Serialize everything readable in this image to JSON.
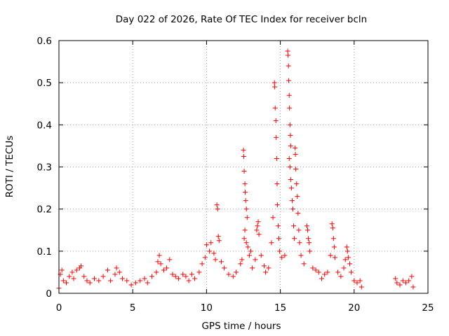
{
  "chart_data": {
    "type": "scatter",
    "title": "Day 022 of 2026, Rate Of TEC Index for receiver bcln",
    "xlabel": "GPS time / hours",
    "ylabel": "ROTI / TECUs",
    "xlim": [
      0,
      25
    ],
    "ylim": [
      0,
      0.6
    ],
    "xticks": [
      "0",
      "5",
      "10",
      "15",
      "20",
      "25"
    ],
    "yticks": [
      "0",
      "0.1",
      "0.2",
      "0.3",
      "0.4",
      "0.5",
      "0.6"
    ],
    "grid": true,
    "marker": "plus",
    "color": "#ff0000",
    "series": [
      {
        "points": [
          [
            0.0,
            0.012
          ],
          [
            0.1,
            0.045
          ],
          [
            0.2,
            0.055
          ],
          [
            0.3,
            0.03
          ],
          [
            0.5,
            0.025
          ],
          [
            0.7,
            0.04
          ],
          [
            0.9,
            0.05
          ],
          [
            1.0,
            0.035
          ],
          [
            1.2,
            0.055
          ],
          [
            1.4,
            0.06
          ],
          [
            1.5,
            0.065
          ],
          [
            1.7,
            0.04
          ],
          [
            1.9,
            0.03
          ],
          [
            2.1,
            0.025
          ],
          [
            2.4,
            0.035
          ],
          [
            2.7,
            0.03
          ],
          [
            3.0,
            0.04
          ],
          [
            3.3,
            0.055
          ],
          [
            3.5,
            0.03
          ],
          [
            3.8,
            0.045
          ],
          [
            3.9,
            0.06
          ],
          [
            4.1,
            0.05
          ],
          [
            4.3,
            0.035
          ],
          [
            4.6,
            0.03
          ],
          [
            4.9,
            0.02
          ],
          [
            5.2,
            0.025
          ],
          [
            5.5,
            0.03
          ],
          [
            5.8,
            0.035
          ],
          [
            6.0,
            0.025
          ],
          [
            6.3,
            0.04
          ],
          [
            6.6,
            0.05
          ],
          [
            6.7,
            0.075
          ],
          [
            6.8,
            0.09
          ],
          [
            6.9,
            0.07
          ],
          [
            7.1,
            0.055
          ],
          [
            7.3,
            0.06
          ],
          [
            7.5,
            0.08
          ],
          [
            7.7,
            0.045
          ],
          [
            7.9,
            0.04
          ],
          [
            8.1,
            0.035
          ],
          [
            8.4,
            0.045
          ],
          [
            8.6,
            0.04
          ],
          [
            8.8,
            0.03
          ],
          [
            9.0,
            0.045
          ],
          [
            9.2,
            0.035
          ],
          [
            9.5,
            0.05
          ],
          [
            9.7,
            0.07
          ],
          [
            9.9,
            0.085
          ],
          [
            10.0,
            0.115
          ],
          [
            10.2,
            0.1
          ],
          [
            10.3,
            0.12
          ],
          [
            10.5,
            0.095
          ],
          [
            10.6,
            0.08
          ],
          [
            10.7,
            0.21
          ],
          [
            10.75,
            0.2
          ],
          [
            10.8,
            0.135
          ],
          [
            10.85,
            0.125
          ],
          [
            11.0,
            0.075
          ],
          [
            11.2,
            0.06
          ],
          [
            11.5,
            0.045
          ],
          [
            11.8,
            0.04
          ],
          [
            12.0,
            0.05
          ],
          [
            12.3,
            0.07
          ],
          [
            12.4,
            0.08
          ],
          [
            12.5,
            0.34
          ],
          [
            12.52,
            0.325
          ],
          [
            12.55,
            0.29
          ],
          [
            12.6,
            0.26
          ],
          [
            12.62,
            0.24
          ],
          [
            12.65,
            0.22
          ],
          [
            12.7,
            0.2
          ],
          [
            12.75,
            0.18
          ],
          [
            12.6,
            0.15
          ],
          [
            12.55,
            0.13
          ],
          [
            12.7,
            0.12
          ],
          [
            12.8,
            0.11
          ],
          [
            12.9,
            0.09
          ],
          [
            13.0,
            0.1
          ],
          [
            13.1,
            0.06
          ],
          [
            13.3,
            0.08
          ],
          [
            13.4,
            0.15
          ],
          [
            13.45,
            0.16
          ],
          [
            13.5,
            0.17
          ],
          [
            13.55,
            0.14
          ],
          [
            13.7,
            0.09
          ],
          [
            13.9,
            0.065
          ],
          [
            14.0,
            0.05
          ],
          [
            14.2,
            0.06
          ],
          [
            14.4,
            0.12
          ],
          [
            14.5,
            0.18
          ],
          [
            14.6,
            0.5
          ],
          [
            14.62,
            0.49
          ],
          [
            14.65,
            0.44
          ],
          [
            14.7,
            0.41
          ],
          [
            14.72,
            0.37
          ],
          [
            14.75,
            0.32
          ],
          [
            14.78,
            0.26
          ],
          [
            14.8,
            0.21
          ],
          [
            14.85,
            0.16
          ],
          [
            14.9,
            0.13
          ],
          [
            14.95,
            0.1
          ],
          [
            15.1,
            0.085
          ],
          [
            15.3,
            0.09
          ],
          [
            15.5,
            0.575
          ],
          [
            15.52,
            0.565
          ],
          [
            15.55,
            0.54
          ],
          [
            15.57,
            0.505
          ],
          [
            15.6,
            0.47
          ],
          [
            15.62,
            0.44
          ],
          [
            15.65,
            0.4
          ],
          [
            15.68,
            0.375
          ],
          [
            15.7,
            0.35
          ],
          [
            15.6,
            0.32
          ],
          [
            15.65,
            0.3
          ],
          [
            15.7,
            0.27
          ],
          [
            15.75,
            0.25
          ],
          [
            15.8,
            0.22
          ],
          [
            15.85,
            0.2
          ],
          [
            15.9,
            0.16
          ],
          [
            15.95,
            0.13
          ],
          [
            16.0,
            0.345
          ],
          [
            16.02,
            0.33
          ],
          [
            16.05,
            0.295
          ],
          [
            16.1,
            0.26
          ],
          [
            16.15,
            0.23
          ],
          [
            16.2,
            0.19
          ],
          [
            16.25,
            0.15
          ],
          [
            16.3,
            0.12
          ],
          [
            16.4,
            0.09
          ],
          [
            16.6,
            0.07
          ],
          [
            16.8,
            0.16
          ],
          [
            16.85,
            0.15
          ],
          [
            16.9,
            0.13
          ],
          [
            16.95,
            0.12
          ],
          [
            17.0,
            0.1
          ],
          [
            17.2,
            0.06
          ],
          [
            17.4,
            0.055
          ],
          [
            17.6,
            0.05
          ],
          [
            17.8,
            0.035
          ],
          [
            18.0,
            0.045
          ],
          [
            18.2,
            0.05
          ],
          [
            18.4,
            0.09
          ],
          [
            18.5,
            0.165
          ],
          [
            18.55,
            0.155
          ],
          [
            18.6,
            0.13
          ],
          [
            18.65,
            0.11
          ],
          [
            18.7,
            0.085
          ],
          [
            18.9,
            0.05
          ],
          [
            19.1,
            0.04
          ],
          [
            19.3,
            0.06
          ],
          [
            19.4,
            0.08
          ],
          [
            19.5,
            0.11
          ],
          [
            19.55,
            0.1
          ],
          [
            19.6,
            0.085
          ],
          [
            19.7,
            0.07
          ],
          [
            19.8,
            0.05
          ],
          [
            20.0,
            0.03
          ],
          [
            20.2,
            0.025
          ],
          [
            20.4,
            0.03
          ],
          [
            20.5,
            0.015
          ],
          [
            22.8,
            0.035
          ],
          [
            22.9,
            0.025
          ],
          [
            23.1,
            0.02
          ],
          [
            23.3,
            0.03
          ],
          [
            23.5,
            0.025
          ],
          [
            23.7,
            0.03
          ],
          [
            23.9,
            0.04
          ],
          [
            24.0,
            0.015
          ]
        ]
      }
    ]
  }
}
